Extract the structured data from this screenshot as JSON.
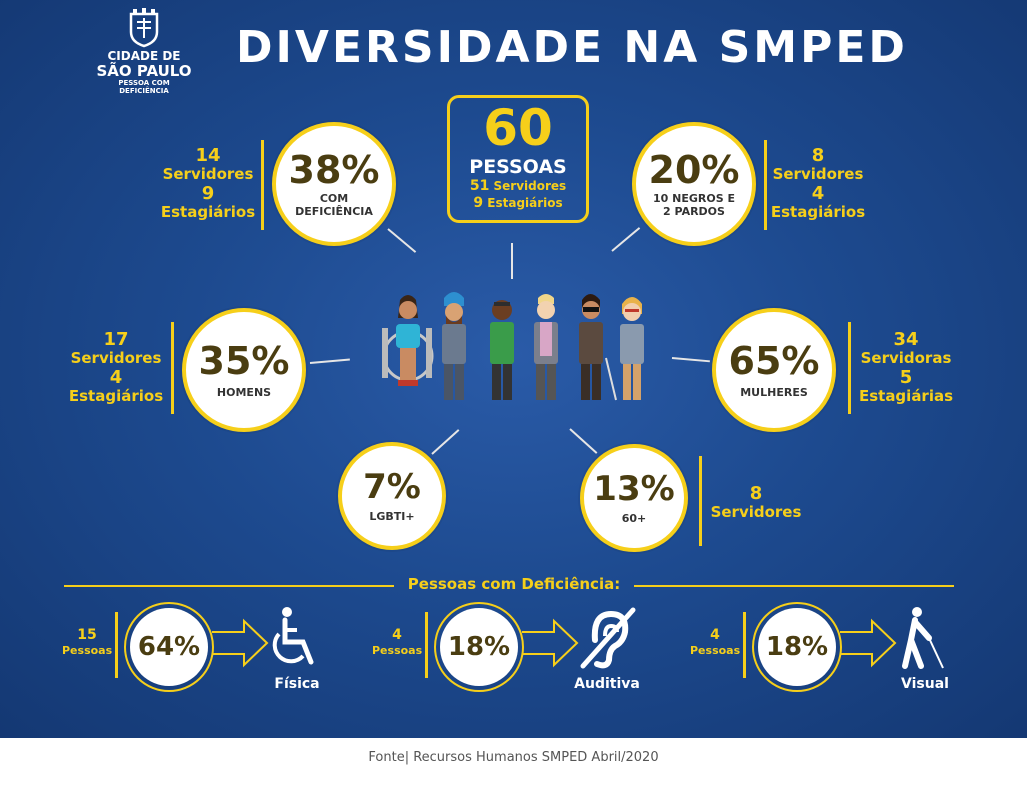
{
  "logo": {
    "line1": "CIDADE DE",
    "line2": "SÃO PAULO",
    "line3": "PESSOA COM",
    "line4": "DEFICIÊNCIA"
  },
  "title": "DIVERSIDADE NA SMPED",
  "total": {
    "number": "60",
    "label": "PESSOAS",
    "servidores_n": "51",
    "servidores_label": "Servidores",
    "estagiarios_n": "9",
    "estagiarios_label": "Estagiários"
  },
  "stats": {
    "deficiencia": {
      "pct": "38%",
      "label_1": "COM",
      "label_2": "DEFICIÊNCIA",
      "servidores_n": "14",
      "servidores_label": "Servidores",
      "estagiarios_n": "9",
      "estagiarios_label": "Estagiários"
    },
    "negros": {
      "pct": "20%",
      "label_1": "10 NEGROS E",
      "label_2": "2 PARDOS",
      "servidores_n": "8",
      "servidores_label": "Servidores",
      "estagiarios_n": "4",
      "estagiarios_label": "Estagiários"
    },
    "homens": {
      "pct": "35%",
      "label_1": "HOMENS",
      "servidores_n": "17",
      "servidores_label": "Servidores",
      "estagiarios_n": "4",
      "estagiarios_label": "Estagiários"
    },
    "mulheres": {
      "pct": "65%",
      "label_1": "MULHERES",
      "servidores_n": "34",
      "servidores_label": "Servidoras",
      "estagiarios_n": "5",
      "estagiarios_label": "Estagiárias"
    },
    "lgbti": {
      "pct": "7%",
      "label_1": "LGBTI+"
    },
    "idosos": {
      "pct": "13%",
      "label_1": "60+",
      "servidores_n": "8",
      "servidores_label": "Servidores"
    }
  },
  "deficiency_section": {
    "title": "Pessoas com Deficiência:",
    "items": [
      {
        "count": "15",
        "count_label": "Pessoas",
        "pct": "64%",
        "name": "Física",
        "icon": "wheelchair-icon"
      },
      {
        "count": "4",
        "count_label": "Pessoas",
        "pct": "18%",
        "name": "Auditiva",
        "icon": "hearing-impaired-icon"
      },
      {
        "count": "4",
        "count_label": "Pessoas",
        "pct": "18%",
        "name": "Visual",
        "icon": "blind-person-icon"
      }
    ]
  },
  "footer": "Fonte| Recursos Humanos SMPED Abril/2020",
  "colors": {
    "background": "#1d4a8f",
    "accent": "#f6cf1a",
    "circle": "#ffffff",
    "percent_text": "#4a3d11"
  }
}
